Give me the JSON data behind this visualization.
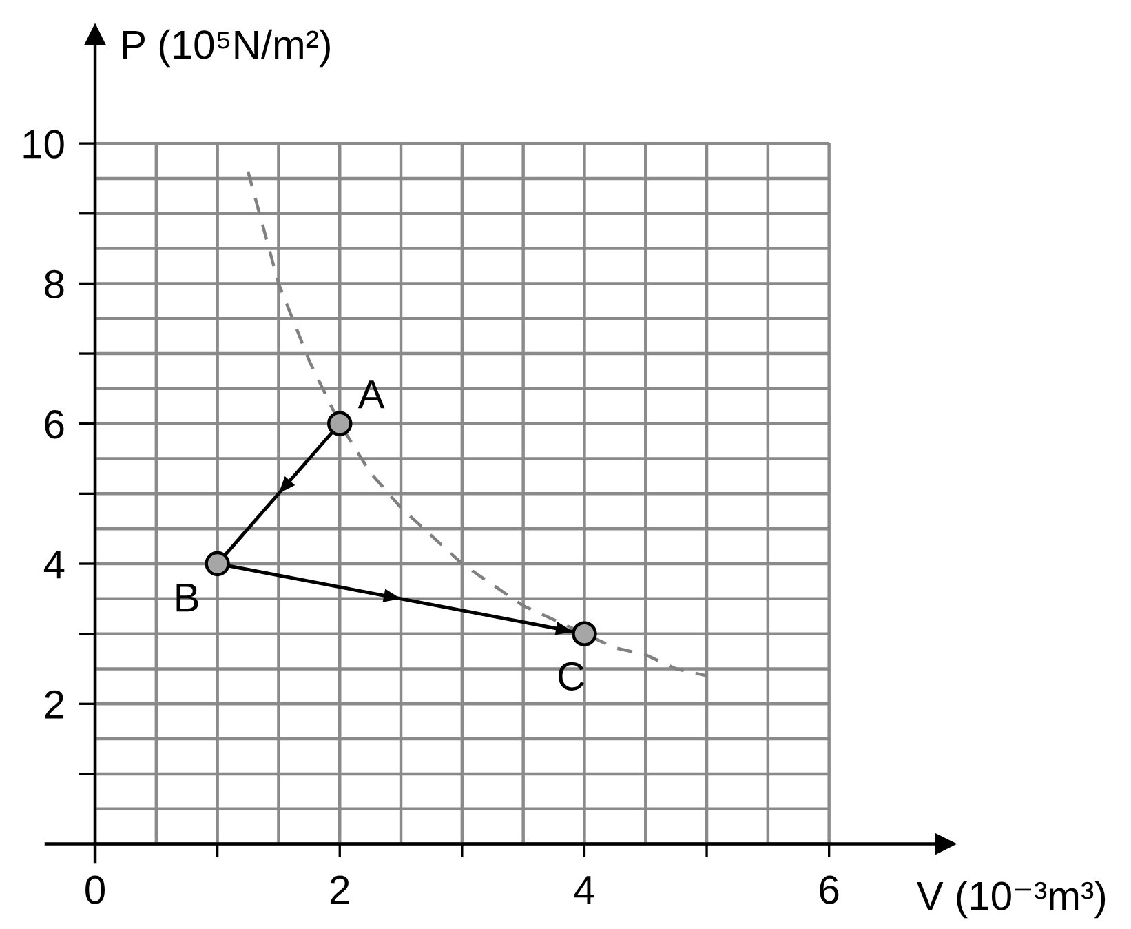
{
  "chart_data": {
    "type": "line",
    "xlabel": "V (10⁻³m³)",
    "ylabel": "P (10⁵N/m²)",
    "xlim": [
      -0.4,
      6.95
    ],
    "ylim": [
      -0.25,
      11.55
    ],
    "xticks": [
      0,
      {
        "value": 1,
        "label": null
      },
      2,
      {
        "value": 3,
        "label": null
      },
      4,
      {
        "value": 5,
        "label": null
      },
      6
    ],
    "yticks": [
      {
        "value": 1,
        "label": null
      },
      2,
      {
        "value": 3,
        "label": null
      },
      4,
      {
        "value": 5,
        "label": null
      },
      6,
      {
        "value": 7,
        "label": null
      },
      8,
      {
        "value": 9,
        "label": null
      },
      10
    ],
    "grid": true,
    "series": [
      {
        "color": "#000000",
        "marker": "circle",
        "line_style": "solid",
        "x": [
          2,
          1,
          4
        ],
        "values": [
          6,
          4,
          3
        ]
      },
      {
        "color": "#808080",
        "marker": "none",
        "line_style": "dashed",
        "x": [
          1.25,
          1.5,
          1.75,
          2,
          2.25,
          2.5,
          2.75,
          3,
          3.25,
          3.5,
          3.75,
          4,
          4.25,
          4.5,
          4.75,
          5
        ],
        "values": [
          9.6,
          8.0,
          6.9,
          6.0,
          5.3,
          4.8,
          4.4,
          4.0,
          3.7,
          3.4,
          3.2,
          3.0,
          2.8,
          2.7,
          2.5,
          2.4
        ]
      }
    ],
    "annotations": [
      {
        "text": "A",
        "x": 2,
        "y": 6
      },
      {
        "text": "B",
        "x": 1,
        "y": 4
      },
      {
        "text": "C",
        "x": 4,
        "y": 3
      }
    ]
  }
}
